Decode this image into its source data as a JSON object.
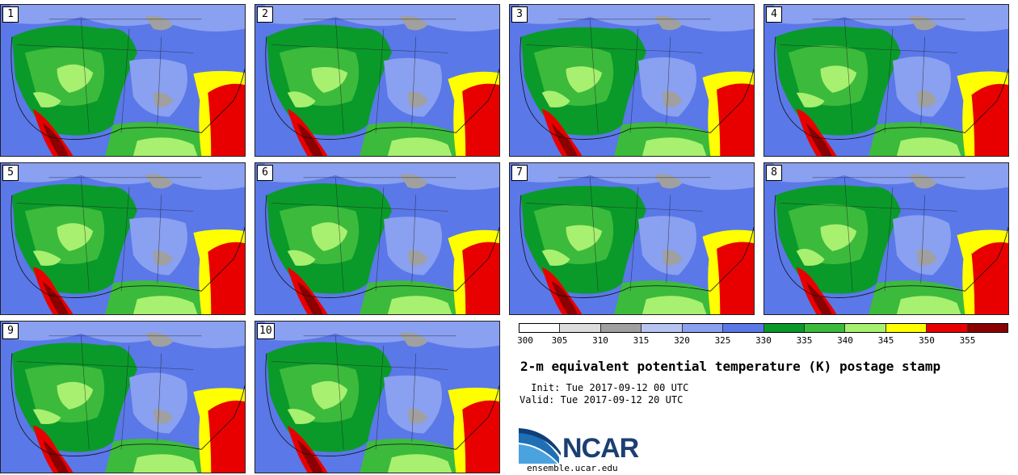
{
  "title": "2-m equivalent potential temperature (K) postage stamp",
  "init_label": " Init: Tue 2017-09-12 00 UTC",
  "valid_label": "Valid: Tue 2017-09-12 20 UTC",
  "org": "NCAR",
  "website": "ensemble.ucar.edu",
  "members": [
    "1",
    "2",
    "3",
    "4",
    "5",
    "6",
    "7",
    "8",
    "9",
    "10"
  ],
  "colorbar": {
    "ticks": [
      "300",
      "305",
      "310",
      "315",
      "320",
      "325",
      "330",
      "335",
      "340",
      "345",
      "350",
      "355"
    ],
    "colors": [
      "#ffffff",
      "#dcdcdc",
      "#a0a0a0",
      "#b8c4f0",
      "#8aa0f0",
      "#5a78e8",
      "#0a9a2a",
      "#3cba3c",
      "#a8f070",
      "#ffff00",
      "#e80000",
      "#8b0000"
    ]
  }
}
